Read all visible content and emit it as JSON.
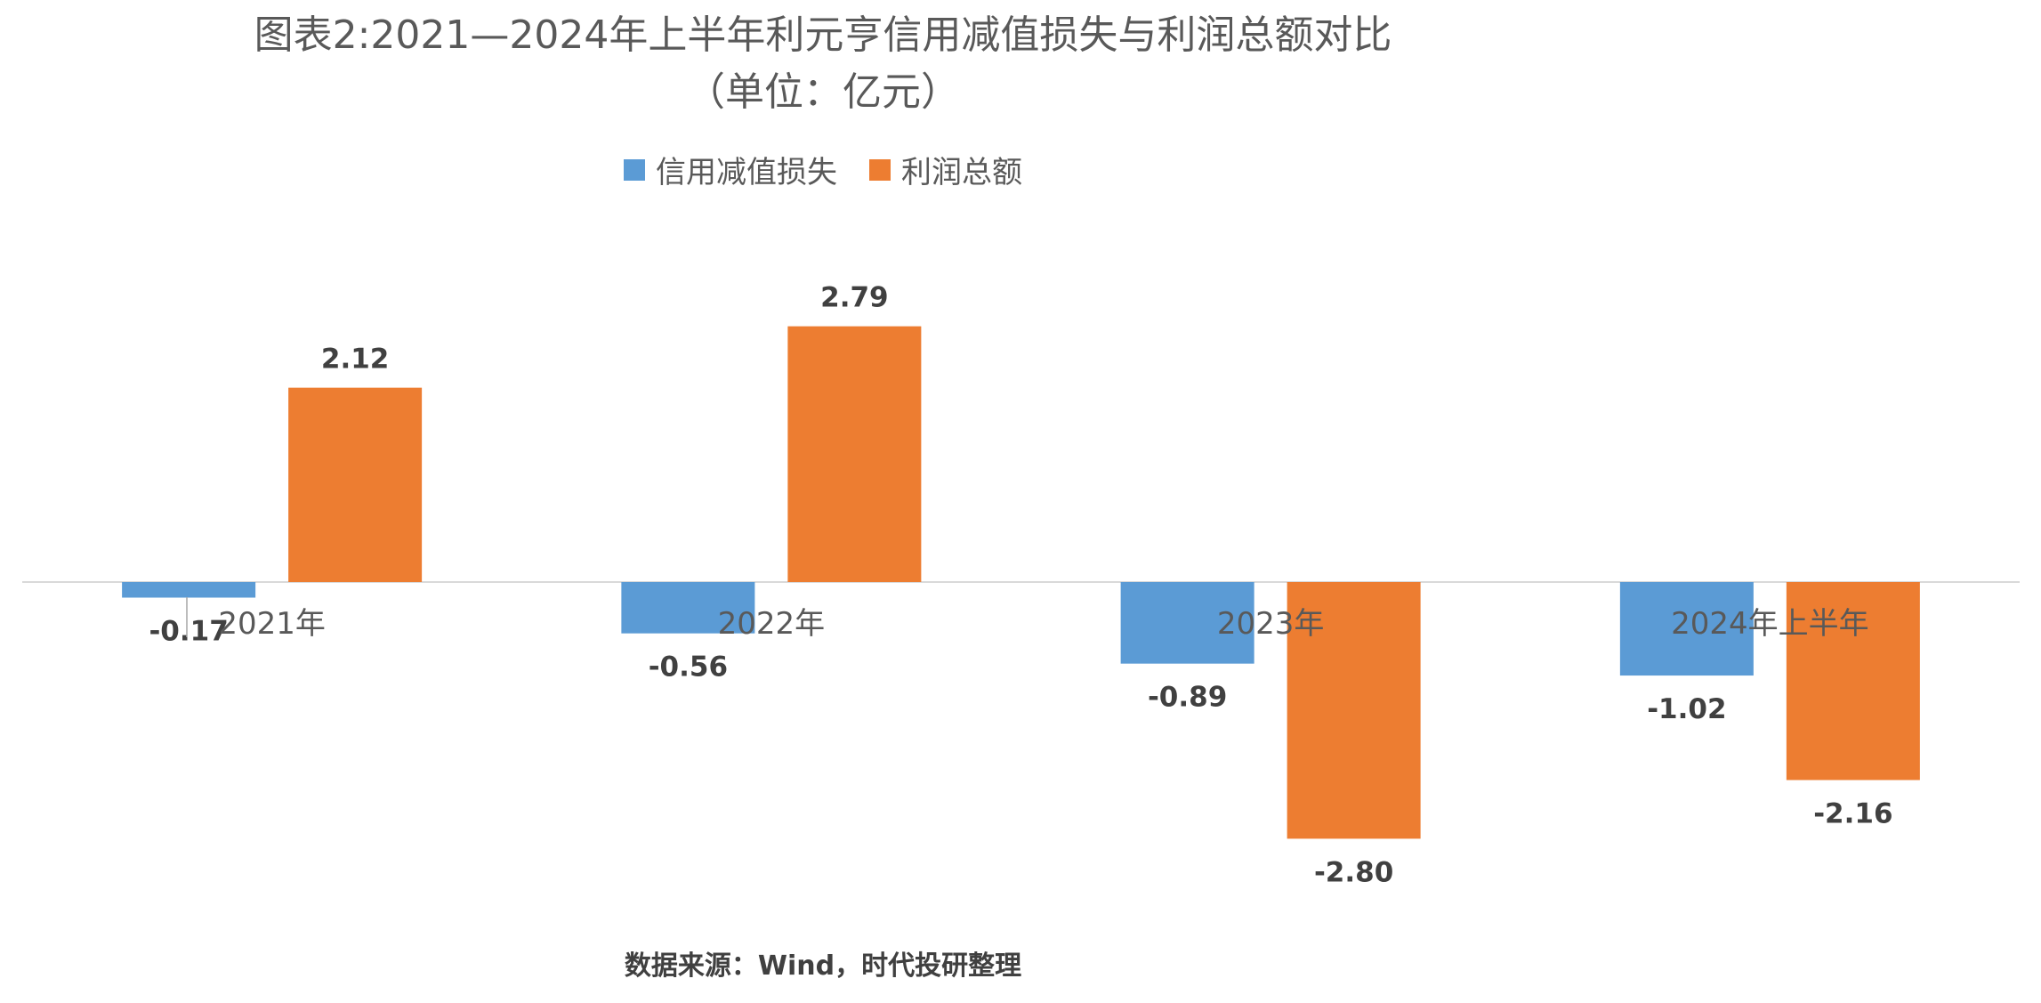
{
  "chart_data": {
    "type": "bar",
    "title": "图表2:2021—2024年上半年利元亨信用减值损失与利润总额对比",
    "subtitle": "（单位：亿元）",
    "categories": [
      "2021年",
      "2022年",
      "2023年",
      "2024年上半年"
    ],
    "series": [
      {
        "name": "信用减值损失",
        "values": [
          -0.17,
          -0.56,
          -0.89,
          -1.02
        ],
        "color": "#5B9BD5"
      },
      {
        "name": "利润总额",
        "values": [
          2.12,
          2.79,
          -2.8,
          -2.16
        ],
        "color": "#ED7D31"
      }
    ],
    "data_labels": [
      [
        "-0.17",
        "-0.56",
        "-0.89",
        "-1.02"
      ],
      [
        "2.12",
        "2.79",
        "-2.80",
        "-2.16"
      ]
    ],
    "ylim": [
      -3.5,
      3.5
    ],
    "grid": false,
    "legend_position": "top",
    "source": "数据来源：Wind，时代投研整理"
  }
}
